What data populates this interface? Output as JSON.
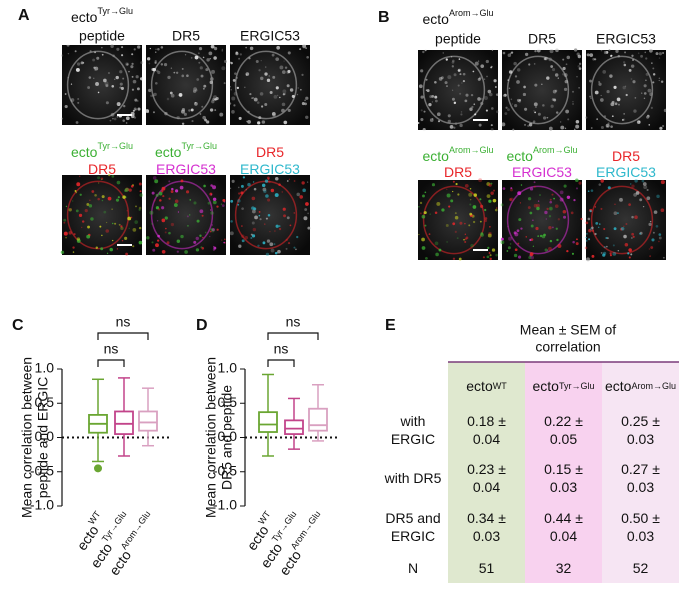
{
  "panel_a": {
    "letter": "A",
    "top_labels": [
      {
        "text": "ecto",
        "sup": "Tyr→Glu",
        "line2": "peptide"
      },
      {
        "text": "DR5"
      },
      {
        "text": "ERGIC53"
      }
    ],
    "merge_labels": [
      [
        {
          "text": "ecto",
          "sup": "Tyr→Glu",
          "color": "#3cb034"
        },
        {
          "text": "DR5",
          "color": "#e8262a"
        }
      ],
      [
        {
          "text": "ecto",
          "sup": "Tyr→Glu",
          "color": "#3cb034"
        },
        {
          "text": "ERGIC53",
          "color": "#d530d0"
        }
      ],
      [
        {
          "text": "DR5",
          "color": "#e8262a"
        },
        {
          "text": "ERGIC53",
          "color": "#2eb8cc"
        }
      ]
    ]
  },
  "panel_b": {
    "letter": "B",
    "top_labels": [
      {
        "text": "ecto",
        "sup": "Arom→Glu",
        "line2": "peptide"
      },
      {
        "text": "DR5"
      },
      {
        "text": "ERGIC53"
      }
    ],
    "merge_labels": [
      [
        {
          "text": "ecto",
          "sup": "Arom→Glu",
          "color": "#3cb034"
        },
        {
          "text": "DR5",
          "color": "#e8262a"
        }
      ],
      [
        {
          "text": "ecto",
          "sup": "Arom→Glu",
          "color": "#3cb034"
        },
        {
          "text": "ERGIC53",
          "color": "#d530d0"
        }
      ],
      [
        {
          "text": "DR5",
          "color": "#e8262a"
        },
        {
          "text": "ERGIC53",
          "color": "#2eb8cc"
        }
      ]
    ]
  },
  "chart_data": [
    {
      "type": "box",
      "letter": "C",
      "y_label": [
        "Mean correlation between",
        "peptide and ERGIC"
      ],
      "categories": [
        {
          "text": "ecto",
          "sup": "WT"
        },
        {
          "text": "ecto",
          "sup": "Tyr→Glu"
        },
        {
          "text": "ecto",
          "sup": "Arom→Glu"
        }
      ],
      "boxes": [
        {
          "min": -0.35,
          "q1": 0.07,
          "median": 0.2,
          "q3": 0.33,
          "max": 0.85,
          "outliers": [
            -0.45
          ],
          "color": "#6aa632"
        },
        {
          "min": -0.27,
          "q1": 0.05,
          "median": 0.2,
          "q3": 0.38,
          "max": 0.87,
          "outliers": [],
          "color": "#c2448a"
        },
        {
          "min": -0.12,
          "q1": 0.1,
          "median": 0.22,
          "q3": 0.38,
          "max": 0.72,
          "outliers": [],
          "color": "#d9a0c0"
        }
      ],
      "ylim": [
        -1,
        1
      ],
      "yticks": [
        {
          "value": -1,
          "label": "-1.0"
        },
        -0.5,
        {
          "value": 0,
          "label": "0.0"
        },
        0.5,
        {
          "value": 1,
          "label": "1.0"
        }
      ],
      "zero_line": true,
      "annotations": [
        "ns",
        "ns"
      ]
    },
    {
      "type": "box",
      "letter": "D",
      "y_label": [
        "Mean correlation between",
        "DR5 and peptide"
      ],
      "categories": [
        {
          "text": "ecto",
          "sup": "WT"
        },
        {
          "text": "ecto",
          "sup": "Tyr→Glu"
        },
        {
          "text": "ecto",
          "sup": "Arom→Glu"
        }
      ],
      "boxes": [
        {
          "min": -0.27,
          "q1": 0.08,
          "median": 0.19,
          "q3": 0.37,
          "max": 0.92,
          "outliers": [],
          "color": "#6aa632"
        },
        {
          "min": -0.17,
          "q1": 0.05,
          "median": 0.13,
          "q3": 0.25,
          "max": 0.57,
          "outliers": [],
          "color": "#c2448a"
        },
        {
          "min": -0.05,
          "q1": 0.1,
          "median": 0.18,
          "q3": 0.42,
          "max": 0.77,
          "outliers": [],
          "color": "#d9a0c0"
        }
      ],
      "ylim": [
        -1,
        1
      ],
      "yticks": [
        {
          "value": -1,
          "label": "-1.0"
        },
        -0.5,
        {
          "value": 0,
          "label": "0.0"
        },
        0.5,
        {
          "value": 1,
          "label": "1.0"
        }
      ],
      "zero_line": true,
      "annotations": [
        "ns",
        "ns"
      ]
    }
  ],
  "table": {
    "letter": "E",
    "title": [
      "Mean ± SEM of",
      "correlation"
    ],
    "columns": [
      {
        "text": "ecto",
        "sup": "WT",
        "color": "#dfe8cf"
      },
      {
        "text": "ecto",
        "sup": "Tyr→Glu",
        "color": "#f8d2ef"
      },
      {
        "text": "ecto",
        "sup": "Arom→Glu",
        "color": "#f6e5f3"
      }
    ],
    "rows": [
      {
        "label": "with ERGIC",
        "cells": [
          "0.18 ± 0.04",
          "0.22 ± 0.05",
          "0.25 ± 0.03"
        ]
      },
      {
        "label": "with DR5",
        "cells": [
          "0.23 ± 0.04",
          "0.15 ± 0.03",
          "0.27 ± 0.03"
        ]
      },
      {
        "label": "DR5 and ERGIC",
        "cells": [
          "0.34 ± 0.03",
          "0.44 ± 0.04",
          "0.50 ± 0.03"
        ]
      },
      {
        "label": "N",
        "cells": [
          51,
          32,
          52
        ]
      }
    ]
  }
}
